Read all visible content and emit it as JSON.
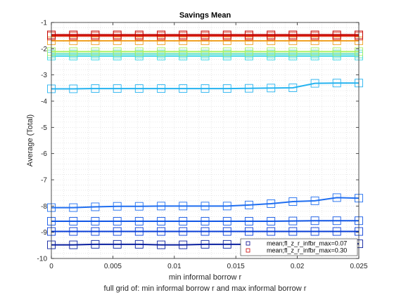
{
  "chart_data": {
    "type": "line",
    "title": "Savings Mean",
    "xlabel": "min informal borrow r",
    "ylabel": "Average (Total)",
    "footer": "full grid of: min informal borrow r and max informal borrow r",
    "xlim": [
      0,
      0.025
    ],
    "ylim": [
      -10,
      -1
    ],
    "xticks": [
      0,
      0.005,
      0.01,
      0.015,
      0.02,
      0.025
    ],
    "xtick_labels": [
      "0",
      "0.005",
      "0.01",
      "0.015",
      "0.02",
      "0.025"
    ],
    "yticks": [
      -10,
      -9,
      -8,
      -7,
      -6,
      -5,
      -4,
      -3,
      -2,
      -1
    ],
    "ytick_labels": [
      "-10",
      "-9",
      "-8",
      "-7",
      "-6",
      "-5",
      "-4",
      "-3",
      "-2",
      "-1"
    ],
    "grid": true,
    "marker": "square",
    "legend_position": "bottom-right",
    "legend": [
      {
        "label": "mean;fl_z_r_infbr_max=0.07",
        "color": "#00008b"
      },
      {
        "label": "mean;fl_z_r_infbr_max=0.30",
        "color": "#cc0000"
      }
    ],
    "x": [
      0,
      0.00179,
      0.00357,
      0.00536,
      0.00714,
      0.00893,
      0.01071,
      0.0125,
      0.01429,
      0.01607,
      0.01786,
      0.01964,
      0.02143,
      0.02321,
      0.025
    ],
    "series": [
      {
        "color": "#0a1f9e",
        "values": [
          -9.48,
          -9.48,
          -9.46,
          -9.46,
          -9.46,
          -9.48,
          -9.48,
          -9.46,
          -9.46,
          -9.46,
          -9.46,
          -9.46,
          -9.46,
          -9.46,
          -9.44
        ]
      },
      {
        "color": "#0a3fd8",
        "values": [
          -8.97,
          -8.97,
          -8.97,
          -8.97,
          -8.97,
          -8.97,
          -8.97,
          -8.97,
          -8.97,
          -8.97,
          -8.97,
          -8.97,
          -8.97,
          -8.97,
          -8.97
        ]
      },
      {
        "color": "#1257e6",
        "values": [
          -8.58,
          -8.58,
          -8.58,
          -8.58,
          -8.58,
          -8.58,
          -8.58,
          -8.58,
          -8.58,
          -8.58,
          -8.58,
          -8.57,
          -8.56,
          -8.56,
          -8.56
        ]
      },
      {
        "color": "#1f6ef0",
        "values": [
          -8.06,
          -8.06,
          -8.03,
          -8.01,
          -8.01,
          -8.0,
          -8.0,
          -8.0,
          -8.0,
          -7.96,
          -7.91,
          -7.83,
          -7.8,
          -7.68,
          -7.7
        ]
      },
      {
        "color": "#25b3f0",
        "values": [
          -3.53,
          -3.53,
          -3.52,
          -3.52,
          -3.52,
          -3.52,
          -3.52,
          -3.52,
          -3.52,
          -3.51,
          -3.5,
          -3.49,
          -3.32,
          -3.31,
          -3.31
        ]
      },
      {
        "color": "#3ad6e6",
        "values": [
          -2.28,
          -2.28,
          -2.28,
          -2.28,
          -2.28,
          -2.28,
          -2.28,
          -2.28,
          -2.28,
          -2.28,
          -2.28,
          -2.28,
          -2.28,
          -2.28,
          -2.28
        ]
      },
      {
        "color": "#58e0c4",
        "values": [
          -2.2,
          -2.2,
          -2.2,
          -2.2,
          -2.2,
          -2.2,
          -2.2,
          -2.2,
          -2.2,
          -2.2,
          -2.2,
          -2.2,
          -2.2,
          -2.2,
          -2.2
        ]
      },
      {
        "color": "#a8f060",
        "values": [
          -2.11,
          -2.11,
          -2.11,
          -2.11,
          -2.11,
          -2.11,
          -2.11,
          -2.11,
          -2.11,
          -2.11,
          -2.11,
          -2.11,
          -2.11,
          -2.11,
          -2.11
        ]
      },
      {
        "color": "#f0a020",
        "values": [
          -1.7,
          -1.7,
          -1.7,
          -1.7,
          -1.7,
          -1.7,
          -1.7,
          -1.7,
          -1.7,
          -1.7,
          -1.7,
          -1.7,
          -1.7,
          -1.7,
          -1.7
        ]
      },
      {
        "color": "#e03018",
        "values": [
          -1.52,
          -1.52,
          -1.52,
          -1.52,
          -1.52,
          -1.52,
          -1.52,
          -1.52,
          -1.52,
          -1.52,
          -1.52,
          -1.52,
          -1.52,
          -1.52,
          -1.52
        ]
      },
      {
        "color": "#c00000",
        "values": [
          -1.47,
          -1.47,
          -1.47,
          -1.47,
          -1.47,
          -1.47,
          -1.47,
          -1.47,
          -1.47,
          -1.47,
          -1.47,
          -1.47,
          -1.47,
          -1.47,
          -1.47
        ]
      }
    ]
  }
}
